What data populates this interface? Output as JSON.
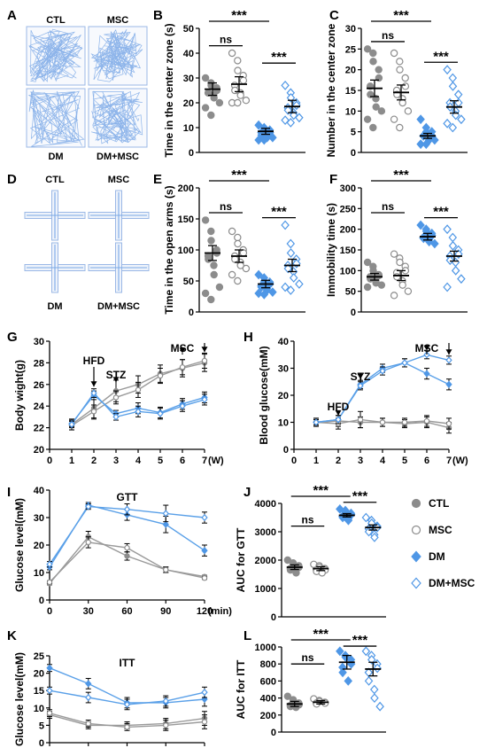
{
  "colors": {
    "ctl": "#8c8c8c",
    "msc": "#8c8c8c",
    "dm": "#4f97e6",
    "dmmsc": "#4f97e6",
    "track": "#7aa8e6",
    "axis": "#000000"
  },
  "legend": [
    {
      "label": "CTL",
      "marker": "filled-circle"
    },
    {
      "label": "MSC",
      "marker": "open-circle"
    },
    {
      "label": "DM",
      "marker": "filled-diamond"
    },
    {
      "label": "DM+MSC",
      "marker": "open-diamond"
    }
  ],
  "panel_letters": [
    "A",
    "B",
    "C",
    "D",
    "E",
    "F",
    "G",
    "H",
    "I",
    "J",
    "K",
    "L"
  ],
  "images": [
    {
      "letter": "A",
      "kind": "open-field",
      "labels": [
        "CTL",
        "MSC",
        "DM",
        "DM+MSC"
      ]
    },
    {
      "letter": "D",
      "kind": "plus-maze",
      "labels": [
        "CTL",
        "MSC",
        "DM",
        "DM+MSC"
      ]
    }
  ],
  "chart_data": [
    {
      "letter": "B",
      "type": "scatter",
      "ylabel": "Time in the center zone (s)",
      "ylim": [
        0,
        50
      ],
      "yticks": [
        "0",
        "10",
        "20",
        "30",
        "40",
        "50"
      ],
      "groups": [
        "CTL",
        "MSC",
        "DM",
        "DM+MSC"
      ],
      "means": [
        25.5,
        27.5,
        8.5,
        18.5
      ],
      "sem": [
        2.5,
        3.0,
        1.2,
        2.5
      ],
      "points": [
        [
          30,
          28,
          27,
          26,
          25,
          24,
          24,
          23,
          22,
          20,
          18,
          15
        ],
        [
          40,
          37,
          33,
          31,
          29,
          27,
          25,
          24,
          23,
          21,
          20,
          20
        ],
        [
          11,
          10,
          9,
          9,
          8,
          8,
          7,
          7,
          6,
          6,
          5,
          5
        ],
        [
          27,
          24,
          22,
          20,
          19,
          18,
          17,
          16,
          15,
          14,
          13,
          12
        ]
      ],
      "significance": [
        {
          "from": 0,
          "to": 1,
          "label": "ns"
        },
        {
          "from": 0,
          "to": 2,
          "label": "***"
        },
        {
          "from": 2,
          "to": 3,
          "label": "***"
        }
      ]
    },
    {
      "letter": "C",
      "type": "scatter",
      "ylabel": "Number in the center zone",
      "ylim": [
        0,
        30
      ],
      "yticks": [
        "0",
        "5",
        "10",
        "15",
        "20",
        "25",
        "30"
      ],
      "groups": [
        "CTL",
        "MSC",
        "DM",
        "DM+MSC"
      ],
      "means": [
        15.5,
        14.5,
        4.0,
        11.0
      ],
      "sem": [
        2.0,
        1.8,
        0.6,
        1.5
      ],
      "points": [
        [
          25,
          24,
          22,
          20,
          18,
          16,
          14,
          13,
          11,
          10,
          8,
          6
        ],
        [
          24,
          22,
          20,
          18,
          16,
          15,
          14,
          13,
          12,
          10,
          8,
          6
        ],
        [
          8,
          6,
          5,
          5,
          4,
          4,
          4,
          3,
          3,
          3,
          2,
          2
        ],
        [
          20,
          18,
          16,
          14,
          12,
          12,
          11,
          10,
          9,
          8,
          7,
          6
        ]
      ],
      "significance": [
        {
          "from": 0,
          "to": 1,
          "label": "ns"
        },
        {
          "from": 0,
          "to": 2,
          "label": "***"
        },
        {
          "from": 2,
          "to": 3,
          "label": "***"
        }
      ]
    },
    {
      "letter": "E",
      "type": "scatter",
      "ylabel": "Time in the open arms (s)",
      "ylim": [
        0,
        200
      ],
      "yticks": [
        "0",
        "50",
        "100",
        "150",
        "200"
      ],
      "groups": [
        "CTL",
        "MSC",
        "DM",
        "DM+MSC"
      ],
      "means": [
        95,
        90,
        45,
        75
      ],
      "sem": [
        12,
        10,
        6,
        10
      ],
      "points": [
        [
          148,
          130,
          115,
          100,
          95,
          90,
          85,
          75,
          60,
          40,
          30,
          20
        ],
        [
          130,
          120,
          110,
          100,
          95,
          90,
          85,
          80,
          75,
          70,
          60,
          50
        ],
        [
          60,
          55,
          50,
          48,
          45,
          42,
          40,
          38,
          35,
          32,
          30,
          28
        ],
        [
          140,
          110,
          95,
          85,
          78,
          75,
          70,
          65,
          55,
          45,
          40,
          35
        ]
      ],
      "significance": [
        {
          "from": 0,
          "to": 1,
          "label": "ns"
        },
        {
          "from": 0,
          "to": 2,
          "label": "***"
        },
        {
          "from": 2,
          "to": 3,
          "label": "***"
        }
      ]
    },
    {
      "letter": "F",
      "type": "scatter",
      "ylabel": "Immobility time (s)",
      "ylim": [
        0,
        300
      ],
      "yticks": [
        "0",
        "50",
        "100",
        "150",
        "200",
        "250",
        "300"
      ],
      "groups": [
        "CTL",
        "MSC",
        "DM",
        "DM+MSC"
      ],
      "means": [
        85,
        88,
        182,
        135
      ],
      "sem": [
        8,
        12,
        8,
        12
      ],
      "points": [
        [
          120,
          110,
          100,
          90,
          88,
          85,
          80,
          75,
          70,
          65,
          60
        ],
        [
          140,
          130,
          120,
          110,
          100,
          95,
          85,
          75,
          65,
          50,
          40
        ],
        [
          210,
          200,
          195,
          190,
          185,
          180,
          178,
          175,
          170,
          165
        ],
        [
          200,
          180,
          160,
          150,
          140,
          135,
          125,
          120,
          100,
          80,
          60
        ]
      ],
      "significance": [
        {
          "from": 0,
          "to": 1,
          "label": "ns"
        },
        {
          "from": 0,
          "to": 2,
          "label": "***"
        },
        {
          "from": 2,
          "to": 3,
          "label": "***"
        }
      ]
    },
    {
      "letter": "G",
      "type": "line",
      "ylabel": "Body wight(g)",
      "xlabel": "(W)",
      "x": [
        1,
        2,
        3,
        4,
        5,
        6,
        7
      ],
      "xticks": [
        "0",
        "1",
        "2",
        "3",
        "4",
        "5",
        "6",
        "7"
      ],
      "xlim": [
        0,
        7
      ],
      "ylim": [
        20,
        30
      ],
      "yticks": [
        "20",
        "22",
        "24",
        "26",
        "28",
        "30"
      ],
      "series": [
        {
          "group": "CTL",
          "values": [
            22.3,
            23.8,
            25.4,
            26.0,
            27.0,
            27.5,
            28.0
          ],
          "err": [
            0.5,
            1.0,
            1.0,
            0.8,
            0.8,
            0.8,
            0.8
          ]
        },
        {
          "group": "MSC",
          "values": [
            22.2,
            23.5,
            24.8,
            25.5,
            26.8,
            27.6,
            28.2
          ],
          "err": [
            0.4,
            0.6,
            0.6,
            0.7,
            0.7,
            0.7,
            0.7
          ]
        },
        {
          "group": "DM",
          "values": [
            22.4,
            25.0,
            23.3,
            23.8,
            23.4,
            24.2,
            24.8
          ],
          "err": [
            0.3,
            0.4,
            0.3,
            0.5,
            0.5,
            0.5,
            0.5
          ]
        },
        {
          "group": "DM+MSC",
          "values": [
            22.3,
            25.2,
            23.0,
            23.5,
            23.3,
            24.0,
            24.6
          ],
          "err": [
            0.3,
            0.4,
            0.3,
            0.5,
            0.5,
            0.5,
            0.5
          ]
        }
      ],
      "annotations": [
        {
          "label": "HFD",
          "x": 2
        },
        {
          "label": "STZ",
          "x": 3
        },
        {
          "label": "MSC",
          "x": 6
        },
        {
          "label": "",
          "x": 7
        }
      ]
    },
    {
      "letter": "H",
      "type": "line",
      "ylabel": "Blood glucose(mM)",
      "xlabel": "(W)",
      "x": [
        1,
        2,
        3,
        4,
        5,
        6,
        7
      ],
      "xticks": [
        "0",
        "1",
        "2",
        "3",
        "4",
        "5",
        "6",
        "7"
      ],
      "xlim": [
        0,
        7
      ],
      "ylim": [
        0,
        40
      ],
      "yticks": [
        "0",
        "10",
        "20",
        "30",
        "40"
      ],
      "series": [
        {
          "group": "CTL",
          "values": [
            10,
            10.5,
            10,
            10,
            9.5,
            10,
            8
          ],
          "err": [
            1.5,
            2,
            2,
            1.5,
            1.5,
            2,
            2
          ]
        },
        {
          "group": "MSC",
          "values": [
            10,
            9.5,
            11,
            10,
            10,
            10.5,
            9.5
          ],
          "err": [
            1.5,
            2,
            3,
            1.5,
            1.5,
            2,
            2
          ]
        },
        {
          "group": "DM",
          "values": [
            10,
            11,
            24,
            30,
            32,
            28,
            24
          ],
          "err": [
            1,
            1.5,
            1.5,
            1.5,
            1.5,
            2,
            2
          ]
        },
        {
          "group": "DM+MSC",
          "values": [
            10,
            11,
            23.5,
            29,
            32,
            35,
            33
          ],
          "err": [
            1,
            1.5,
            1.5,
            1.5,
            1.5,
            1.5,
            1.5
          ]
        }
      ],
      "annotations": [
        {
          "label": "HFD",
          "x": 2
        },
        {
          "label": "STZ",
          "x": 3
        },
        {
          "label": "MSC",
          "x": 6
        },
        {
          "label": "",
          "x": 7
        }
      ]
    },
    {
      "letter": "I",
      "type": "line",
      "title": "GTT",
      "ylabel": "Glucose level(mM)",
      "xlabel": "(min)",
      "x": [
        0,
        30,
        60,
        90,
        120
      ],
      "xticks": [
        "0",
        "30",
        "60",
        "90",
        "120"
      ],
      "xlim": [
        0,
        120
      ],
      "ylim": [
        0,
        40
      ],
      "yticks": [
        "0",
        "10",
        "20",
        "30",
        "40"
      ],
      "series": [
        {
          "group": "CTL",
          "values": [
            6,
            23,
            16,
            11,
            8.5
          ],
          "err": [
            0.5,
            2,
            1.5,
            1,
            0.5
          ]
        },
        {
          "group": "MSC",
          "values": [
            6.5,
            21,
            19,
            11,
            8
          ],
          "err": [
            0.5,
            2,
            1.5,
            1,
            0.5
          ]
        },
        {
          "group": "DM",
          "values": [
            12,
            34.5,
            31,
            27.5,
            18
          ],
          "err": [
            1,
            1,
            2,
            3,
            2
          ]
        },
        {
          "group": "DM+MSC",
          "values": [
            13,
            34,
            33,
            31.5,
            30
          ],
          "err": [
            1,
            1,
            2,
            3,
            2
          ]
        }
      ]
    },
    {
      "letter": "J",
      "type": "scatter",
      "ylabel": "AUC for GTT",
      "ylim": [
        0,
        4000
      ],
      "yticks": [
        "0",
        "1000",
        "2000",
        "3000",
        "4000"
      ],
      "groups": [
        "CTL",
        "MSC",
        "DM",
        "DM+MSC"
      ],
      "means": [
        1750,
        1700,
        3580,
        3150
      ],
      "sem": [
        80,
        70,
        60,
        90
      ],
      "points": [
        [
          2000,
          1900,
          1850,
          1800,
          1750,
          1700,
          1650,
          1600,
          1550
        ],
        [
          1850,
          1800,
          1750,
          1700,
          1650,
          1650,
          1600,
          1550
        ],
        [
          3800,
          3750,
          3700,
          3650,
          3600,
          3550,
          3500,
          3450,
          3400
        ],
        [
          3500,
          3400,
          3300,
          3200,
          3150,
          3100,
          3000,
          2900,
          2800
        ]
      ],
      "significance": [
        {
          "from": 0,
          "to": 1,
          "label": "ns"
        },
        {
          "from": 0,
          "to": 2,
          "label": "***"
        },
        {
          "from": 2,
          "to": 3,
          "label": "***"
        }
      ]
    },
    {
      "letter": "K",
      "type": "line",
      "title": "ITT",
      "ylabel": "Glucose level(mM)",
      "xlabel": "(min)",
      "x": [
        0,
        15,
        30,
        45,
        60
      ],
      "xticks": [
        "0",
        "15",
        "30",
        "45",
        "60"
      ],
      "xlim": [
        0,
        60
      ],
      "ylim": [
        0,
        25
      ],
      "yticks": [
        "0",
        "5",
        "10",
        "15",
        "20",
        "25"
      ],
      "series": [
        {
          "group": "CTL",
          "values": [
            8,
            5,
            5,
            5.5,
            7
          ],
          "err": [
            1,
            1,
            1,
            1.5,
            2
          ]
        },
        {
          "group": "MSC",
          "values": [
            8.5,
            5.5,
            4.5,
            5,
            6
          ],
          "err": [
            1,
            1,
            1,
            1.5,
            2
          ]
        },
        {
          "group": "DM",
          "values": [
            21.5,
            17,
            11.5,
            11.5,
            12.5
          ],
          "err": [
            1,
            1.5,
            1.5,
            1.5,
            2
          ]
        },
        {
          "group": "DM+MSC",
          "values": [
            15,
            13,
            11,
            12,
            14.5
          ],
          "err": [
            1,
            1.5,
            1.5,
            1.5,
            1.5
          ]
        }
      ]
    },
    {
      "letter": "L",
      "type": "scatter",
      "ylabel": "AUC for ITT",
      "ylim": [
        0,
        1000
      ],
      "yticks": [
        "0",
        "200",
        "400",
        "600",
        "800",
        "1000"
      ],
      "groups": [
        "CTL",
        "MSC",
        "DM",
        "DM+MSC"
      ],
      "means": [
        330,
        350,
        820,
        740
      ],
      "sem": [
        30,
        20,
        80,
        80
      ],
      "points": [
        [
          420,
          380,
          360,
          340,
          320,
          310,
          300,
          290
        ],
        [
          390,
          370,
          360,
          350,
          340,
          340,
          330
        ],
        [
          950,
          900,
          880,
          850,
          800,
          760,
          700,
          600
        ],
        [
          950,
          900,
          850,
          800,
          750,
          700,
          600,
          500,
          400,
          300
        ]
      ],
      "significance": [
        {
          "from": 0,
          "to": 1,
          "label": "ns"
        },
        {
          "from": 0,
          "to": 2,
          "label": "***"
        },
        {
          "from": 2,
          "to": 3,
          "label": "***"
        }
      ]
    }
  ]
}
